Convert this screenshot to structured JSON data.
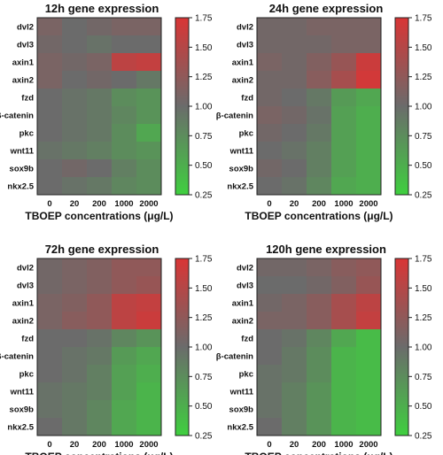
{
  "chart_data": [
    {
      "type": "heatmap",
      "title": "12h gene expression",
      "xlabel": "TBOEP concentrations (μg/L)",
      "x": [
        "0",
        "20",
        "200",
        "1000",
        "2000"
      ],
      "y": [
        "dvl2",
        "dvl3",
        "axin1",
        "axin2",
        "fzd",
        "β-catenin",
        "pkc",
        "wnt11",
        "sox9b",
        "nkx2.5"
      ],
      "values": [
        [
          1.1,
          1.0,
          1.05,
          1.1,
          1.1
        ],
        [
          1.05,
          1.0,
          0.95,
          1.0,
          1.0
        ],
        [
          1.1,
          1.05,
          1.1,
          1.55,
          1.6
        ],
        [
          1.1,
          1.0,
          1.05,
          1.0,
          0.9
        ],
        [
          1.0,
          0.95,
          0.9,
          0.75,
          0.7
        ],
        [
          1.0,
          0.95,
          0.9,
          0.8,
          0.7
        ],
        [
          1.0,
          0.95,
          0.9,
          0.75,
          0.55
        ],
        [
          0.95,
          0.9,
          0.85,
          0.75,
          0.7
        ],
        [
          1.0,
          1.05,
          1.0,
          0.85,
          0.75
        ],
        [
          1.0,
          0.95,
          0.9,
          0.8,
          0.75
        ]
      ],
      "colorbar": {
        "min": 0.25,
        "max": 1.75,
        "ticks": [
          "1.75",
          "1.50",
          "1.25",
          "1.00",
          "0.75",
          "0.50",
          "0.25"
        ]
      },
      "colors": {
        "low": "#3fcf3f",
        "mid": "#6b6b6b",
        "high": "#d93535"
      }
    },
    {
      "type": "heatmap",
      "title": "24h gene expression",
      "xlabel": "TBOEP concentrations (μg/L)",
      "x": [
        "0",
        "20",
        "200",
        "1000",
        "2000"
      ],
      "y": [
        "dvl2",
        "dvl3",
        "axin1",
        "axin2",
        "fzd",
        "β-catenin",
        "pkc",
        "wnt11",
        "sox9b",
        "nkx2.5"
      ],
      "values": [
        [
          1.05,
          1.05,
          1.1,
          1.1,
          1.1
        ],
        [
          1.05,
          1.05,
          1.05,
          1.1,
          1.1
        ],
        [
          1.1,
          1.05,
          1.15,
          1.3,
          1.65
        ],
        [
          1.05,
          1.05,
          1.2,
          1.4,
          1.7
        ],
        [
          1.05,
          1.0,
          0.9,
          0.65,
          0.55
        ],
        [
          1.1,
          1.05,
          0.95,
          0.6,
          0.5
        ],
        [
          1.05,
          1.0,
          0.9,
          0.6,
          0.5
        ],
        [
          1.0,
          0.95,
          0.85,
          0.6,
          0.5
        ],
        [
          1.05,
          1.0,
          0.85,
          0.6,
          0.5
        ],
        [
          1.0,
          0.95,
          0.8,
          0.55,
          0.5
        ]
      ],
      "colorbar": {
        "min": 0.25,
        "max": 1.75,
        "ticks": [
          "1.75",
          "1.50",
          "1.25",
          "1.00",
          "0.75",
          "0.50",
          "0.25"
        ]
      },
      "colors": {
        "low": "#3fcf3f",
        "mid": "#6b6b6b",
        "high": "#d93535"
      }
    },
    {
      "type": "heatmap",
      "title": "72h gene expression",
      "xlabel": "TBOEP concentrations (μg/L)",
      "x": [
        "0",
        "20",
        "200",
        "1000",
        "2000"
      ],
      "y": [
        "dvl2",
        "dvl3",
        "axin1",
        "axin2",
        "fzd",
        "β-catenin",
        "pkc",
        "wnt11",
        "sox9b",
        "nkx2.5"
      ],
      "values": [
        [
          1.05,
          1.1,
          1.15,
          1.25,
          1.25
        ],
        [
          1.05,
          1.1,
          1.15,
          1.25,
          1.3
        ],
        [
          1.1,
          1.15,
          1.25,
          1.55,
          1.6
        ],
        [
          1.1,
          1.2,
          1.25,
          1.55,
          1.65
        ],
        [
          1.0,
          1.0,
          0.95,
          0.8,
          0.7
        ],
        [
          1.0,
          0.95,
          0.9,
          0.65,
          0.55
        ],
        [
          1.0,
          0.95,
          0.85,
          0.6,
          0.5
        ],
        [
          0.95,
          0.9,
          0.85,
          0.6,
          0.45
        ],
        [
          0.95,
          0.9,
          0.8,
          0.55,
          0.45
        ],
        [
          1.0,
          0.9,
          0.8,
          0.55,
          0.45
        ]
      ],
      "colorbar": {
        "min": 0.25,
        "max": 1.75,
        "ticks": [
          "1.75",
          "1.50",
          "1.25",
          "1.00",
          "0.75",
          "0.50",
          "0.25"
        ]
      },
      "colors": {
        "low": "#3fcf3f",
        "mid": "#6b6b6b",
        "high": "#d93535"
      }
    },
    {
      "type": "heatmap",
      "title": "120h gene expression",
      "xlabel": "TBOEP concentrations (μg/L)",
      "x": [
        "0",
        "20",
        "200",
        "1000",
        "2000"
      ],
      "y": [
        "dvl2",
        "dvl3",
        "axin1",
        "axin2",
        "fzd",
        "β-catenin",
        "pkc",
        "wnt11",
        "sox9b",
        "nkx2.5"
      ],
      "values": [
        [
          1.05,
          1.05,
          1.1,
          1.2,
          1.25
        ],
        [
          1.0,
          1.0,
          1.05,
          1.15,
          1.3
        ],
        [
          1.05,
          1.1,
          1.2,
          1.4,
          1.55
        ],
        [
          1.1,
          1.1,
          1.2,
          1.4,
          1.6
        ],
        [
          1.0,
          0.95,
          0.8,
          0.55,
          0.4
        ],
        [
          1.0,
          0.9,
          0.75,
          0.45,
          0.4
        ],
        [
          0.95,
          0.9,
          0.75,
          0.45,
          0.4
        ],
        [
          0.95,
          0.85,
          0.7,
          0.45,
          0.4
        ],
        [
          0.95,
          0.85,
          0.7,
          0.45,
          0.4
        ],
        [
          1.0,
          0.85,
          0.7,
          0.45,
          0.4
        ]
      ],
      "colorbar": {
        "min": 0.25,
        "max": 1.75,
        "ticks": [
          "1.75",
          "1.50",
          "1.25",
          "1.00",
          "0.75",
          "0.50",
          "0.25"
        ]
      },
      "colors": {
        "low": "#3fcf3f",
        "mid": "#6b6b6b",
        "high": "#d93535"
      }
    }
  ]
}
